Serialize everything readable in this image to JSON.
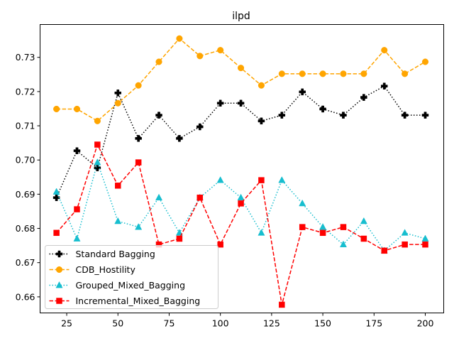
{
  "chart_data": {
    "type": "line",
    "title": "ilpd",
    "xlabel": "",
    "ylabel": "",
    "xlim": [
      12,
      209
    ],
    "ylim": [
      0.6553,
      0.7396
    ],
    "xticks": [
      25,
      50,
      75,
      100,
      125,
      150,
      175,
      200
    ],
    "yticks": [
      0.66,
      0.67,
      0.68,
      0.69,
      0.7,
      0.71,
      0.72,
      0.73
    ],
    "ytick_labels": [
      "0.66",
      "0.67",
      "0.68",
      "0.69",
      "0.70",
      "0.71",
      "0.72",
      "0.73"
    ],
    "grid": false,
    "legend_position": "lower-left",
    "x": [
      20,
      30,
      40,
      50,
      60,
      70,
      80,
      90,
      100,
      110,
      120,
      130,
      140,
      150,
      160,
      170,
      180,
      190,
      200
    ],
    "series": [
      {
        "name": "Standard Bagging",
        "color": "#000000",
        "linestyle": "dotted",
        "marker": "plus",
        "values": [
          0.689,
          0.7027,
          0.6977,
          0.7196,
          0.7063,
          0.7131,
          0.7063,
          0.7097,
          0.7166,
          0.7166,
          0.7114,
          0.7131,
          0.7199,
          0.7149,
          0.7131,
          0.7183,
          0.7216,
          0.7131,
          0.7131
        ]
      },
      {
        "name": "CDB_Hostility",
        "color": "#ffa500",
        "linestyle": "dashed",
        "marker": "circle",
        "values": [
          0.7149,
          0.7149,
          0.7114,
          0.7166,
          0.7218,
          0.7287,
          0.7355,
          0.7304,
          0.7321,
          0.7269,
          0.7218,
          0.7252,
          0.7252,
          0.7252,
          0.7252,
          0.7252,
          0.7321,
          0.7252,
          0.7287
        ]
      },
      {
        "name": "Grouped_Mixed_Bagging",
        "color": "#17becf",
        "linestyle": "dotted",
        "marker": "triangle",
        "values": [
          0.6907,
          0.677,
          0.6993,
          0.6821,
          0.6804,
          0.689,
          0.6787,
          0.689,
          0.6941,
          0.689,
          0.6787,
          0.6941,
          0.6873,
          0.6804,
          0.6753,
          0.6821,
          0.6735,
          0.6787,
          0.677
        ]
      },
      {
        "name": "Incremental_Mixed_Bagging",
        "color": "#ff0000",
        "linestyle": "dashed",
        "marker": "square",
        "values": [
          0.6787,
          0.6856,
          0.7045,
          0.6925,
          0.6993,
          0.6753,
          0.677,
          0.689,
          0.6753,
          0.6873,
          0.6941,
          0.6577,
          0.6804,
          0.6787,
          0.6804,
          0.677,
          0.6735,
          0.6753,
          0.6753
        ]
      }
    ]
  }
}
